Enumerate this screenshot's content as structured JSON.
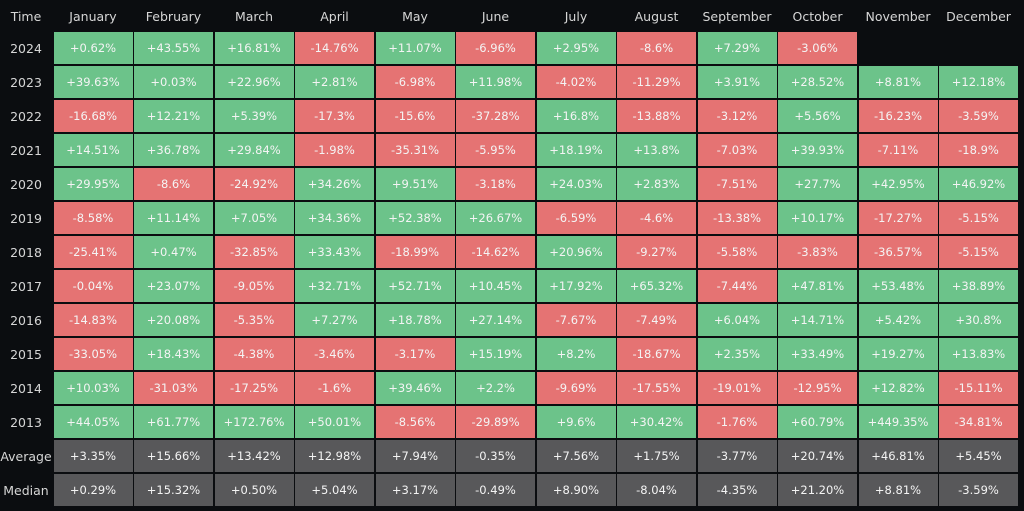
{
  "colors": {
    "positive": "#6cc38a",
    "negative": "#e57373",
    "summary": "#58585a",
    "background": "#0b0d10"
  },
  "chart_data": {
    "type": "table",
    "corner_label": "Time",
    "columns": [
      "January",
      "February",
      "March",
      "April",
      "May",
      "June",
      "July",
      "August",
      "September",
      "October",
      "November",
      "December"
    ],
    "rows": [
      {
        "label": "2024",
        "values": [
          "+0.62%",
          "+43.55%",
          "+16.81%",
          "-14.76%",
          "+11.07%",
          "-6.96%",
          "+2.95%",
          "-8.6%",
          "+7.29%",
          "-3.06%",
          null,
          null
        ]
      },
      {
        "label": "2023",
        "values": [
          "+39.63%",
          "+0.03%",
          "+22.96%",
          "+2.81%",
          "-6.98%",
          "+11.98%",
          "-4.02%",
          "-11.29%",
          "+3.91%",
          "+28.52%",
          "+8.81%",
          "+12.18%"
        ]
      },
      {
        "label": "2022",
        "values": [
          "-16.68%",
          "+12.21%",
          "+5.39%",
          "-17.3%",
          "-15.6%",
          "-37.28%",
          "+16.8%",
          "-13.88%",
          "-3.12%",
          "+5.56%",
          "-16.23%",
          "-3.59%"
        ]
      },
      {
        "label": "2021",
        "values": [
          "+14.51%",
          "+36.78%",
          "+29.84%",
          "-1.98%",
          "-35.31%",
          "-5.95%",
          "+18.19%",
          "+13.8%",
          "-7.03%",
          "+39.93%",
          "-7.11%",
          "-18.9%"
        ]
      },
      {
        "label": "2020",
        "values": [
          "+29.95%",
          "-8.6%",
          "-24.92%",
          "+34.26%",
          "+9.51%",
          "-3.18%",
          "+24.03%",
          "+2.83%",
          "-7.51%",
          "+27.7%",
          "+42.95%",
          "+46.92%"
        ]
      },
      {
        "label": "2019",
        "values": [
          "-8.58%",
          "+11.14%",
          "+7.05%",
          "+34.36%",
          "+52.38%",
          "+26.67%",
          "-6.59%",
          "-4.6%",
          "-13.38%",
          "+10.17%",
          "-17.27%",
          "-5.15%"
        ]
      },
      {
        "label": "2018",
        "values": [
          "-25.41%",
          "+0.47%",
          "-32.85%",
          "+33.43%",
          "-18.99%",
          "-14.62%",
          "+20.96%",
          "-9.27%",
          "-5.58%",
          "-3.83%",
          "-36.57%",
          "-5.15%"
        ]
      },
      {
        "label": "2017",
        "values": [
          "-0.04%",
          "+23.07%",
          "-9.05%",
          "+32.71%",
          "+52.71%",
          "+10.45%",
          "+17.92%",
          "+65.32%",
          "-7.44%",
          "+47.81%",
          "+53.48%",
          "+38.89%"
        ]
      },
      {
        "label": "2016",
        "values": [
          "-14.83%",
          "+20.08%",
          "-5.35%",
          "+7.27%",
          "+18.78%",
          "+27.14%",
          "-7.67%",
          "-7.49%",
          "+6.04%",
          "+14.71%",
          "+5.42%",
          "+30.8%"
        ]
      },
      {
        "label": "2015",
        "values": [
          "-33.05%",
          "+18.43%",
          "-4.38%",
          "-3.46%",
          "-3.17%",
          "+15.19%",
          "+8.2%",
          "-18.67%",
          "+2.35%",
          "+33.49%",
          "+19.27%",
          "+13.83%"
        ]
      },
      {
        "label": "2014",
        "values": [
          "+10.03%",
          "-31.03%",
          "-17.25%",
          "-1.6%",
          "+39.46%",
          "+2.2%",
          "-9.69%",
          "-17.55%",
          "-19.01%",
          "-12.95%",
          "+12.82%",
          "-15.11%"
        ]
      },
      {
        "label": "2013",
        "values": [
          "+44.05%",
          "+61.77%",
          "+172.76%",
          "+50.01%",
          "-8.56%",
          "-29.89%",
          "+9.6%",
          "+30.42%",
          "-1.76%",
          "+60.79%",
          "+449.35%",
          "-34.81%"
        ]
      }
    ],
    "summary_rows": [
      {
        "label": "Average",
        "values": [
          "+3.35%",
          "+15.66%",
          "+13.42%",
          "+12.98%",
          "+7.94%",
          "-0.35%",
          "+7.56%",
          "+1.75%",
          "-3.77%",
          "+20.74%",
          "+46.81%",
          "+5.45%"
        ]
      },
      {
        "label": "Median",
        "values": [
          "+0.29%",
          "+15.32%",
          "+0.50%",
          "+5.04%",
          "+3.17%",
          "-0.49%",
          "+8.90%",
          "-8.04%",
          "-4.35%",
          "+21.20%",
          "+8.81%",
          "-3.59%"
        ]
      }
    ]
  }
}
